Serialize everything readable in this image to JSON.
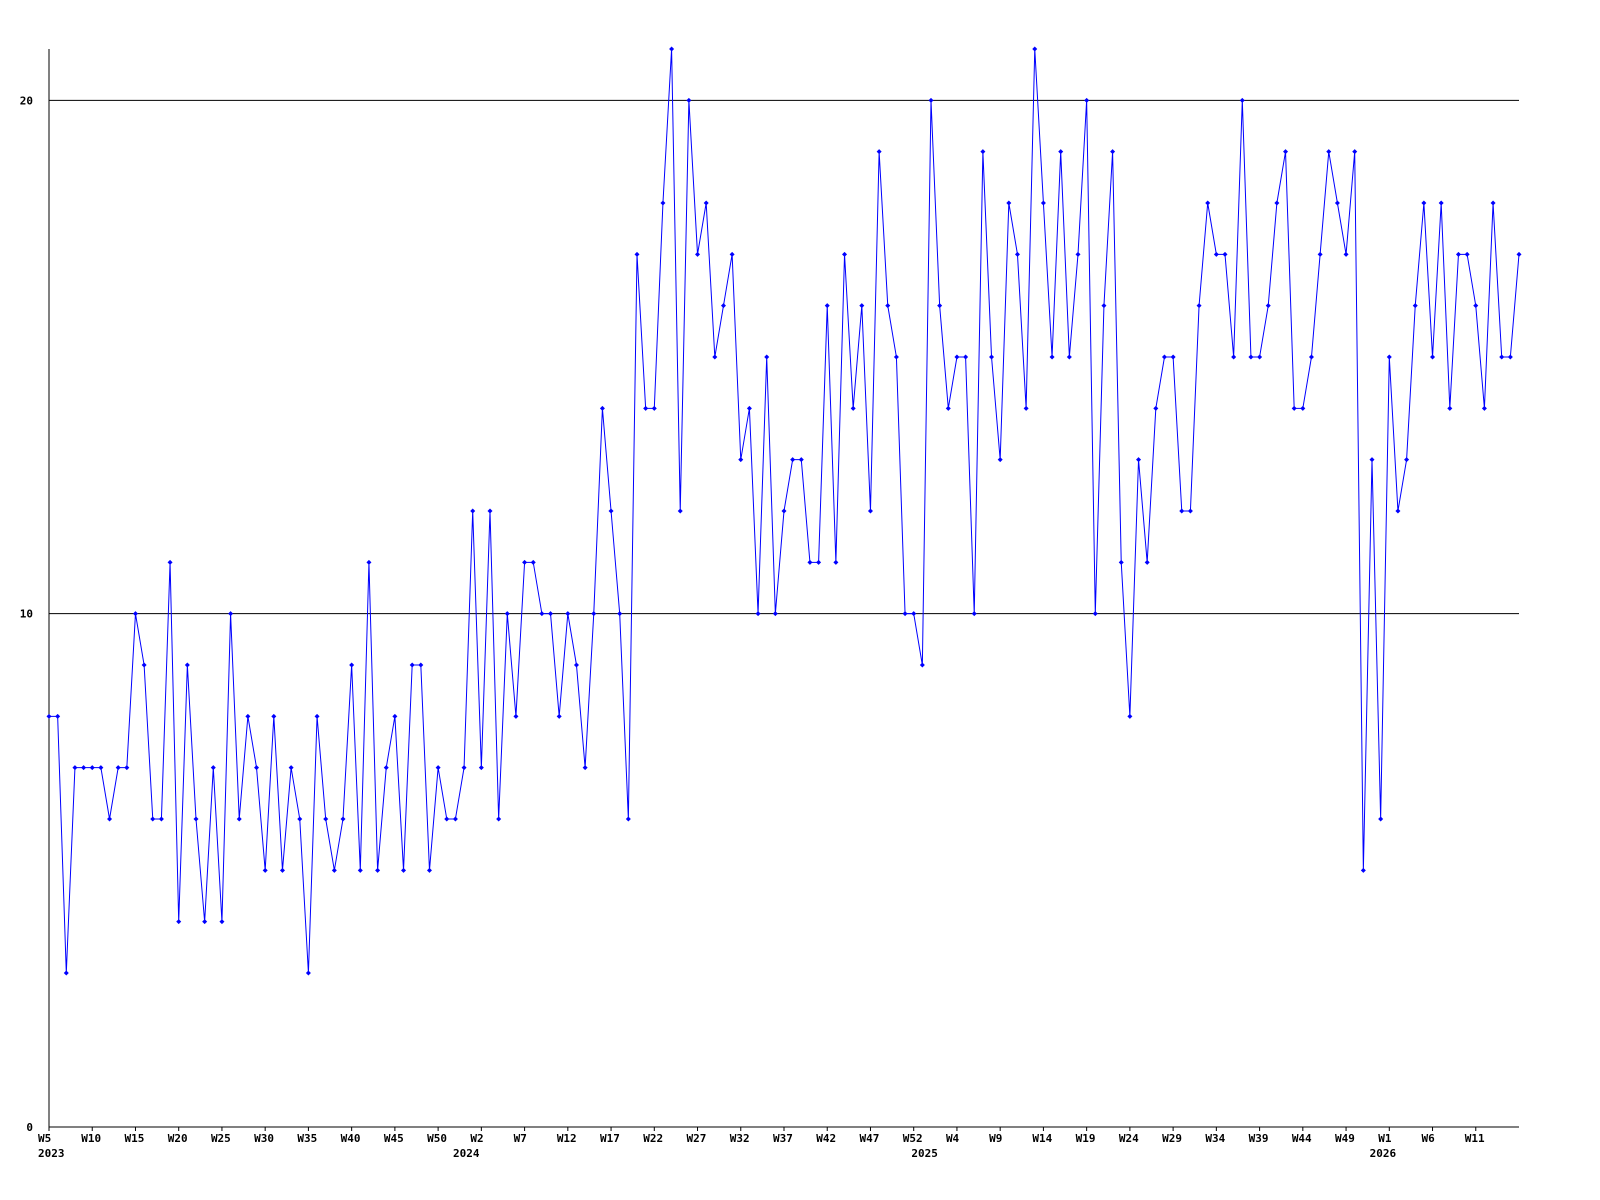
{
  "chart_data": {
    "type": "line",
    "categories": [
      "W5",
      null,
      null,
      null,
      null,
      "W10",
      null,
      null,
      null,
      null,
      "W15",
      null,
      null,
      null,
      null,
      "W20",
      null,
      null,
      null,
      null,
      "W25",
      null,
      null,
      null,
      null,
      "W30",
      null,
      null,
      null,
      null,
      "W35",
      null,
      null,
      null,
      null,
      "W40",
      null,
      null,
      null,
      null,
      "W45",
      null,
      null,
      null,
      null,
      "W50",
      null,
      null,
      null,
      null,
      "W2",
      null,
      null,
      null,
      null,
      "W7",
      null,
      null,
      null,
      null,
      "W12",
      null,
      null,
      null,
      null,
      "W17",
      null,
      null,
      null,
      null,
      "W22",
      null,
      null,
      null,
      null,
      "W27",
      null,
      null,
      null,
      null,
      "W32",
      null,
      null,
      null,
      null,
      "W37",
      null,
      null,
      null,
      null,
      "W42",
      null,
      null,
      null,
      null,
      "W47",
      null,
      null,
      null,
      null,
      "W52",
      null,
      null,
      null,
      null,
      "W4",
      null,
      null,
      null,
      null,
      "W9",
      null,
      null,
      null,
      null,
      "W14",
      null,
      null,
      null,
      null,
      "W19",
      null,
      null,
      null,
      null,
      "W24",
      null,
      null,
      null,
      null,
      "W29",
      null,
      null,
      null,
      null,
      "W34",
      null,
      null,
      null,
      null,
      "W39",
      null,
      null,
      null,
      null,
      "W44",
      null,
      null,
      null,
      null,
      "W49",
      null,
      null,
      null,
      null,
      "W1",
      null,
      null,
      null,
      null,
      "W6",
      null,
      null,
      null,
      null,
      "W11",
      null,
      null,
      null,
      null,
      null
    ],
    "category_years": [
      "2023",
      null,
      null,
      null,
      null,
      null,
      null,
      null,
      null,
      null,
      null,
      null,
      null,
      null,
      null,
      null,
      null,
      null,
      null,
      null,
      null,
      null,
      null,
      null,
      null,
      null,
      null,
      null,
      null,
      null,
      null,
      null,
      null,
      null,
      null,
      null,
      null,
      null,
      null,
      null,
      null,
      null,
      null,
      null,
      null,
      null,
      null,
      null,
      "2024",
      null,
      null,
      null,
      null,
      null,
      null,
      null,
      null,
      null,
      null,
      null,
      null,
      null,
      null,
      null,
      null,
      null,
      null,
      null,
      null,
      null,
      null,
      null,
      null,
      null,
      null,
      null,
      null,
      null,
      null,
      null,
      null,
      null,
      null,
      null,
      null,
      null,
      null,
      null,
      null,
      null,
      null,
      null,
      null,
      null,
      null,
      null,
      null,
      null,
      null,
      null,
      null,
      "2025",
      null,
      null,
      null,
      null,
      null,
      null,
      null,
      null,
      null,
      null,
      null,
      null,
      null,
      null,
      null,
      null,
      null,
      null,
      null,
      null,
      null,
      null,
      null,
      null,
      null,
      null,
      null,
      null,
      null,
      null,
      null,
      null,
      null,
      null,
      null,
      null,
      null,
      null,
      null,
      null,
      null,
      null,
      null,
      null,
      null,
      null,
      null,
      null,
      null,
      null,
      null,
      null,
      "2026",
      null,
      null,
      null,
      null,
      null,
      null,
      null,
      null,
      null,
      null,
      null,
      null,
      null,
      null,
      null,
      null
    ],
    "values": [
      8,
      8,
      3,
      7,
      7,
      7,
      7,
      6,
      7,
      7,
      10,
      9,
      6,
      6,
      11,
      4,
      9,
      6,
      4,
      7,
      4,
      10,
      6,
      8,
      7,
      5,
      8,
      5,
      7,
      6,
      3,
      8,
      6,
      5,
      6,
      9,
      5,
      11,
      5,
      7,
      8,
      5,
      9,
      9,
      5,
      7,
      6,
      6,
      7,
      12,
      7,
      12,
      6,
      10,
      8,
      11,
      11,
      10,
      10,
      8,
      10,
      9,
      7,
      10,
      14,
      12,
      10,
      6,
      17,
      14,
      14,
      18,
      21,
      12,
      20,
      17,
      18,
      15,
      16,
      17,
      13,
      14,
      10,
      15,
      10,
      12,
      13,
      13,
      11,
      11,
      16,
      11,
      17,
      14,
      16,
      12,
      19,
      16,
      15,
      10,
      10,
      9,
      20,
      16,
      14,
      15,
      15,
      10,
      19,
      15,
      13,
      18,
      17,
      14,
      21,
      18,
      15,
      19,
      15,
      17,
      20,
      10,
      16,
      19,
      11,
      8,
      13,
      11,
      14,
      15,
      15,
      12,
      12,
      16,
      18,
      17,
      17,
      15,
      20,
      15,
      15,
      16,
      18,
      19,
      14,
      14,
      15,
      17,
      19,
      18,
      17,
      19,
      5,
      13,
      6,
      15,
      12,
      13,
      16,
      18,
      15,
      18,
      14,
      17,
      17,
      16,
      14,
      18,
      15,
      15,
      17
    ],
    "color": "#0000ff",
    "ylim": [
      0,
      21
    ],
    "yticks": [
      0,
      10,
      20
    ],
    "grid": true
  }
}
